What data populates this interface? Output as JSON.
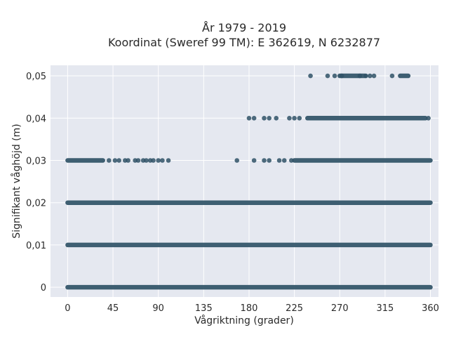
{
  "chart_data": {
    "type": "scatter",
    "title_line1": "År 1979 - 2019",
    "title_line2": "Koordinat (Sweref 99 TM): E 362619, N 6232877",
    "xlabel": "Vågriktning (grader)",
    "ylabel": "Signifikant våghöjd (m)",
    "xlim": [
      -17,
      368
    ],
    "ylim": [
      -0.0023,
      0.0525
    ],
    "xticks": [
      0,
      45,
      90,
      135,
      180,
      225,
      270,
      315,
      360
    ],
    "yticks": [
      0,
      0.01,
      0.02,
      0.03,
      0.04,
      0.05
    ],
    "xtick_labels": [
      "0",
      "45",
      "90",
      "135",
      "180",
      "225",
      "270",
      "315",
      "360"
    ],
    "ytick_labels": [
      "0",
      "0,01",
      "0,02",
      "0,03",
      "0,04",
      "0,05"
    ],
    "grid": true,
    "marker_color": "#2f5166",
    "background_color": "#e5e8f0",
    "series": [
      {
        "y": 0,
        "ranges": [
          [
            0,
            360
          ]
        ],
        "points": []
      },
      {
        "y": 0.01,
        "ranges": [
          [
            0,
            360
          ]
        ],
        "points": []
      },
      {
        "y": 0.02,
        "ranges": [
          [
            0,
            360
          ]
        ],
        "points": []
      },
      {
        "y": 0.03,
        "ranges": [
          [
            0,
            35
          ],
          [
            225,
            360
          ]
        ],
        "points": [
          41,
          47,
          51,
          57,
          60,
          67,
          70,
          75,
          78,
          82,
          85,
          90,
          94,
          100,
          168,
          185,
          195,
          200,
          210,
          215,
          222
        ]
      },
      {
        "y": 0.04,
        "ranges": [
          [
            238,
            355
          ]
        ],
        "points": [
          180,
          185,
          195,
          200,
          207,
          220,
          225,
          230,
          358
        ]
      },
      {
        "y": 0.05,
        "ranges": [
          [
            270,
            295
          ],
          [
            330,
            338
          ]
        ],
        "points": [
          241,
          258,
          265,
          272,
          290,
          296,
          300,
          304,
          322
        ]
      }
    ]
  }
}
